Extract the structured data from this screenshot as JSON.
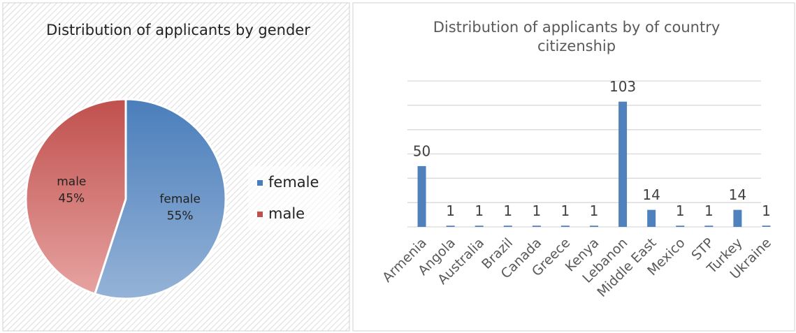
{
  "chart_data": [
    {
      "type": "pie",
      "title": "Distribution of applicants by gender",
      "categories": [
        "female",
        "male"
      ],
      "values": [
        55,
        45
      ],
      "value_labels": [
        "55%",
        "45%"
      ],
      "colors": [
        [
          "#4a7ebb",
          "#95b3d7"
        ],
        [
          "#c0504d",
          "#e6a3a1"
        ]
      ],
      "legend": "right"
    },
    {
      "type": "bar",
      "title": "Distribution of applicants by of country citizenship",
      "categories": [
        "Armenia",
        "Angola",
        "Australia",
        "Brazil",
        "Canada",
        "Greece",
        "Kenya",
        "Lebanon",
        "Middle East",
        "Mexico",
        "STP",
        "Turkey",
        "Ukraine"
      ],
      "values": [
        50,
        1,
        1,
        1,
        1,
        1,
        1,
        103,
        14,
        1,
        1,
        14,
        1
      ],
      "color": "#4f81bd",
      "ylim": [
        0,
        120
      ],
      "yticks": [
        0,
        20,
        40,
        60,
        80,
        100,
        120
      ],
      "show_ytick_labels": false,
      "grid": true
    }
  ]
}
